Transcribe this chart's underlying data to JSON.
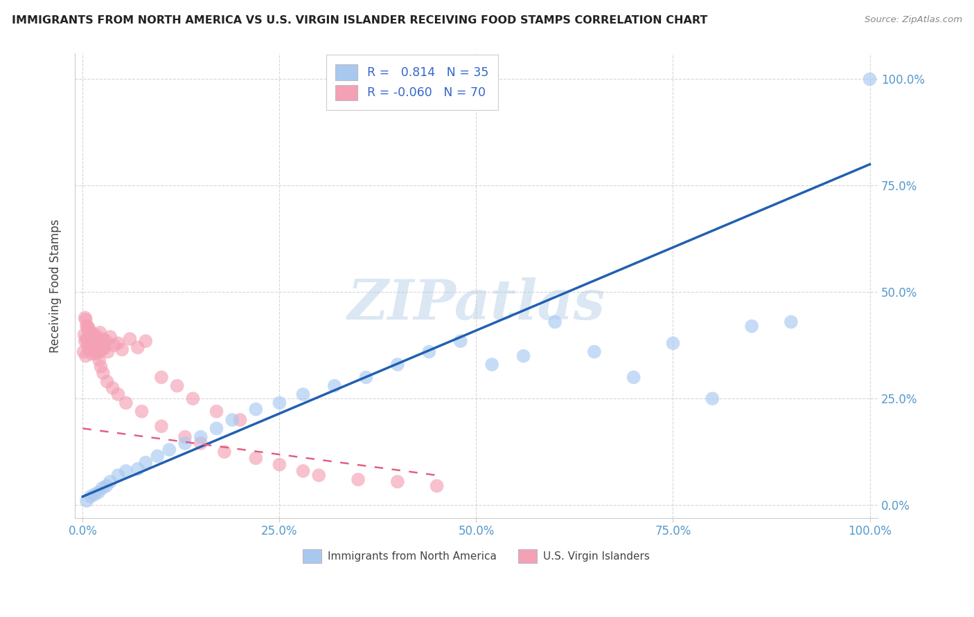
{
  "title": "IMMIGRANTS FROM NORTH AMERICA VS U.S. VIRGIN ISLANDER RECEIVING FOOD STAMPS CORRELATION CHART",
  "source": "Source: ZipAtlas.com",
  "ylabel": "Receiving Food Stamps",
  "watermark": "ZIPatlas",
  "legend_label_blue": "Immigrants from North America",
  "legend_label_pink": "U.S. Virgin Islanders",
  "blue_R": 0.814,
  "blue_N": 35,
  "pink_R": -0.06,
  "pink_N": 70,
  "blue_color": "#a8c8f0",
  "pink_color": "#f4a0b5",
  "blue_line_color": "#2060b0",
  "pink_line_color": "#e06080",
  "blue_x": [
    0.5,
    1.0,
    1.5,
    2.0,
    2.5,
    3.0,
    3.5,
    4.5,
    5.5,
    7.0,
    8.0,
    9.5,
    11.0,
    13.0,
    15.0,
    17.0,
    19.0,
    22.0,
    25.0,
    28.0,
    32.0,
    36.0,
    40.0,
    44.0,
    48.0,
    52.0,
    56.0,
    60.0,
    65.0,
    70.0,
    75.0,
    80.0,
    85.0,
    90.0,
    100.0
  ],
  "blue_y": [
    1.0,
    2.0,
    2.5,
    3.0,
    4.0,
    4.5,
    5.5,
    7.0,
    8.0,
    8.5,
    10.0,
    11.5,
    13.0,
    14.5,
    16.0,
    18.0,
    20.0,
    22.5,
    24.0,
    26.0,
    28.0,
    30.0,
    33.0,
    36.0,
    38.5,
    33.0,
    35.0,
    43.0,
    36.0,
    30.0,
    38.0,
    25.0,
    42.0,
    43.0,
    100.0
  ],
  "pink_x": [
    0.1,
    0.2,
    0.3,
    0.4,
    0.5,
    0.5,
    0.6,
    0.7,
    0.8,
    0.9,
    1.0,
    1.0,
    1.1,
    1.2,
    1.3,
    1.4,
    1.5,
    1.6,
    1.7,
    1.8,
    1.9,
    2.0,
    2.1,
    2.2,
    2.3,
    2.4,
    2.5,
    2.6,
    2.8,
    3.0,
    3.2,
    3.5,
    4.0,
    4.5,
    5.0,
    6.0,
    7.0,
    8.0,
    10.0,
    12.0,
    14.0,
    17.0,
    20.0,
    0.3,
    0.4,
    0.6,
    0.8,
    1.1,
    1.3,
    1.6,
    1.8,
    2.1,
    2.3,
    2.6,
    3.1,
    3.8,
    4.5,
    5.5,
    7.5,
    10.0,
    13.0,
    15.0,
    18.0,
    22.0,
    25.0,
    28.0,
    30.0,
    35.0,
    40.0,
    45.0
  ],
  "pink_y": [
    36.0,
    40.0,
    38.5,
    35.0,
    42.0,
    39.0,
    37.5,
    41.0,
    36.5,
    38.0,
    39.5,
    37.0,
    40.5,
    35.5,
    38.0,
    39.5,
    37.0,
    40.0,
    36.5,
    38.5,
    37.5,
    39.0,
    36.0,
    40.5,
    37.5,
    38.0,
    36.5,
    39.0,
    37.0,
    38.5,
    36.0,
    39.5,
    37.5,
    38.0,
    36.5,
    39.0,
    37.0,
    38.5,
    30.0,
    28.0,
    25.0,
    22.0,
    20.0,
    44.0,
    43.5,
    42.0,
    41.5,
    40.0,
    38.5,
    37.0,
    35.5,
    34.0,
    32.5,
    31.0,
    29.0,
    27.5,
    26.0,
    24.0,
    22.0,
    18.5,
    16.0,
    14.5,
    12.5,
    11.0,
    9.5,
    8.0,
    7.0,
    6.0,
    5.5,
    4.5
  ]
}
